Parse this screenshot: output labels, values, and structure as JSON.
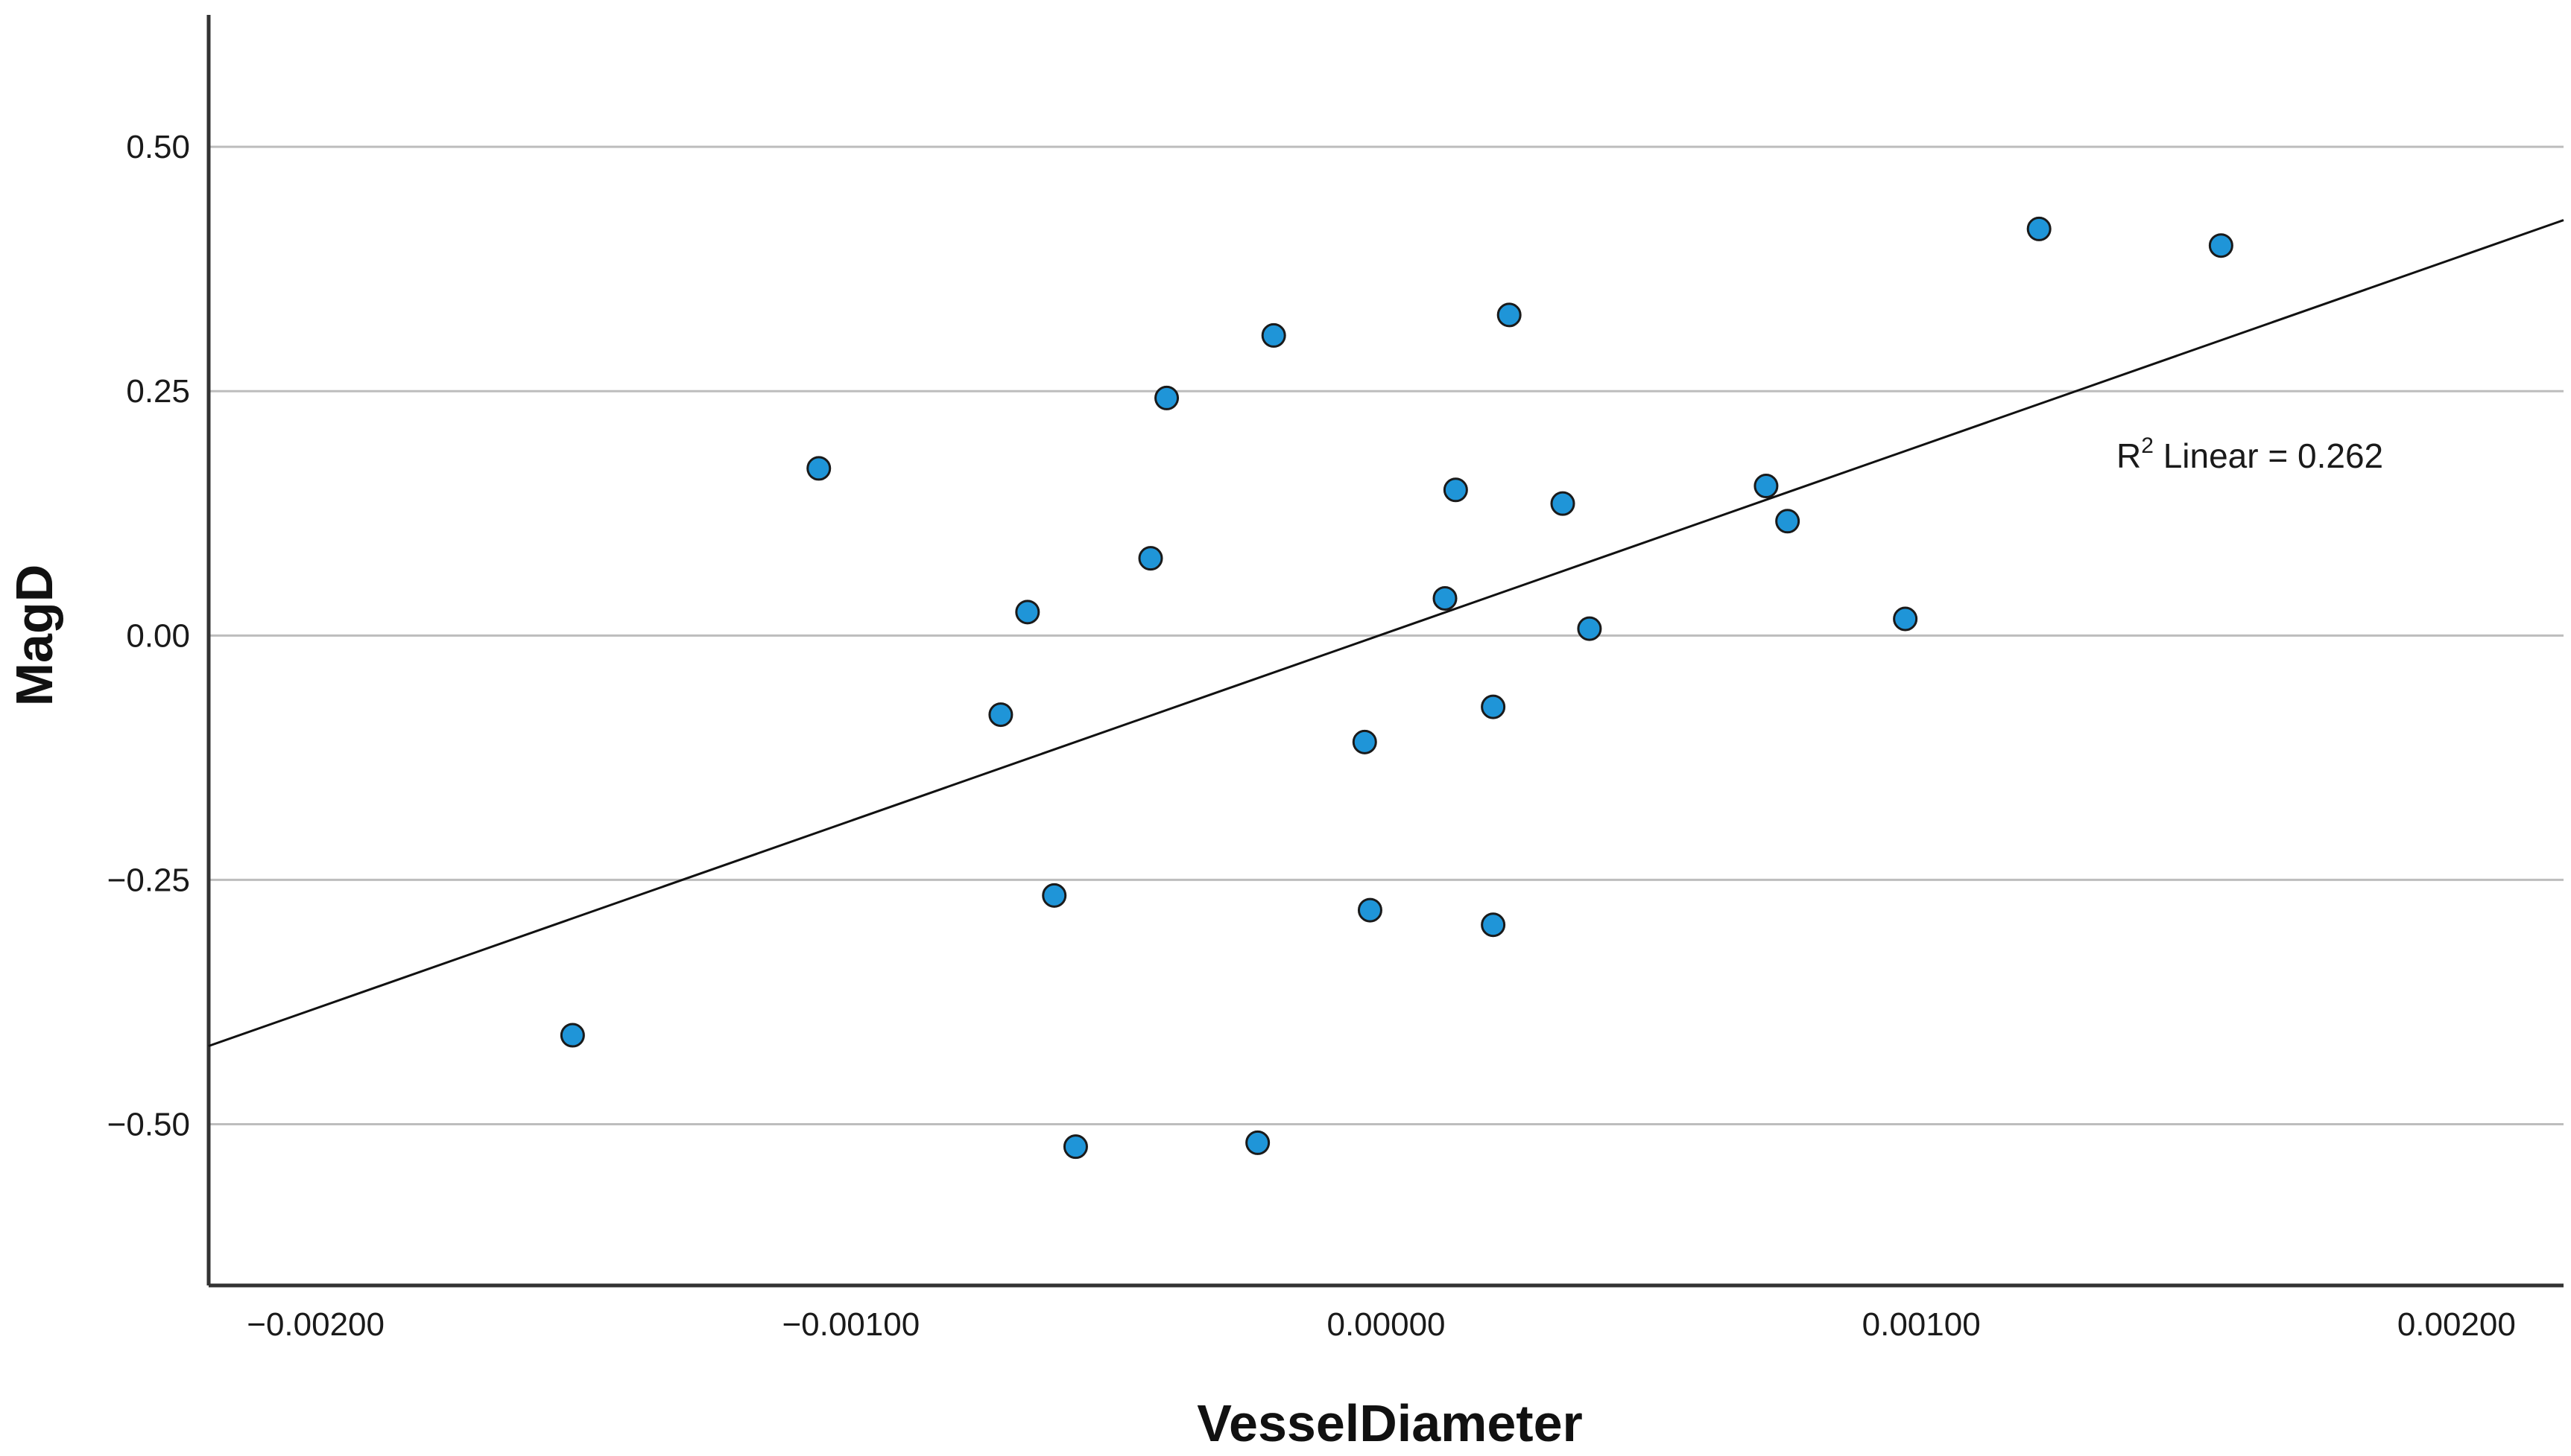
{
  "chart_data": {
    "type": "scatter",
    "xlabel": "VesselDiameter",
    "ylabel": "MagD",
    "xlim": [
      -0.0022,
      0.0022
    ],
    "ylim": [
      -0.665,
      0.635
    ],
    "x_ticks": [
      -0.002,
      -0.001,
      0.0,
      0.001,
      0.002
    ],
    "x_tick_labels": [
      "−0.00200",
      "−0.00100",
      "0.00000",
      "0.00100",
      "0.00200"
    ],
    "y_ticks": [
      0.5,
      0.25,
      0.0,
      -0.25,
      -0.5
    ],
    "y_tick_labels": [
      "0.50",
      "0.25",
      "0.00",
      "−0.25",
      "−0.50"
    ],
    "grid": "horizontal",
    "points": [
      {
        "x": -0.00152,
        "y": -0.409
      },
      {
        "x": -0.00106,
        "y": 0.171
      },
      {
        "x": -0.00072,
        "y": -0.081
      },
      {
        "x": -0.00067,
        "y": 0.024
      },
      {
        "x": -0.00062,
        "y": -0.266
      },
      {
        "x": -0.00058,
        "y": -0.523
      },
      {
        "x": -0.00044,
        "y": 0.079
      },
      {
        "x": -0.00041,
        "y": 0.243
      },
      {
        "x": -0.00024,
        "y": -0.519
      },
      {
        "x": -0.00021,
        "y": 0.307
      },
      {
        "x": -4e-05,
        "y": -0.109
      },
      {
        "x": -3e-05,
        "y": -0.281
      },
      {
        "x": 0.00011,
        "y": 0.038
      },
      {
        "x": 0.00013,
        "y": 0.149
      },
      {
        "x": 0.0002,
        "y": -0.073
      },
      {
        "x": 0.0002,
        "y": -0.296
      },
      {
        "x": 0.00023,
        "y": 0.328
      },
      {
        "x": 0.00033,
        "y": 0.135
      },
      {
        "x": 0.00038,
        "y": 0.007
      },
      {
        "x": 0.00071,
        "y": 0.153
      },
      {
        "x": 0.00075,
        "y": 0.117
      },
      {
        "x": 0.00097,
        "y": 0.017
      },
      {
        "x": 0.00122,
        "y": 0.416
      },
      {
        "x": 0.00156,
        "y": 0.399
      }
    ],
    "fit_line": {
      "type": "linear",
      "x": [
        -0.0022,
        0.0022
      ],
      "y": [
        -0.42,
        0.425
      ]
    },
    "annotation": {
      "prefix": "R",
      "superscript": "2",
      "text": " Linear = 0.262"
    },
    "colors": {
      "marker_fill": "#1f95d8",
      "marker_stroke": "#1a1a1a",
      "grid": "#bdbdbd",
      "axis": "#333333",
      "fit_line": "#111111"
    }
  }
}
